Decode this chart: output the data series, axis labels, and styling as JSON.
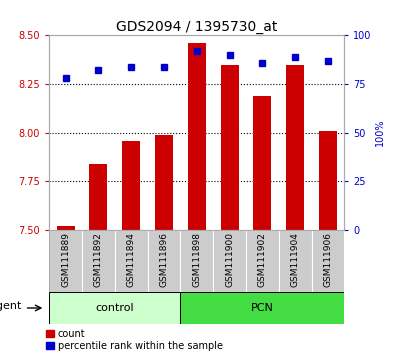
{
  "title": "GDS2094 / 1395730_at",
  "categories": [
    "GSM111889",
    "GSM111892",
    "GSM111894",
    "GSM111896",
    "GSM111898",
    "GSM111900",
    "GSM111902",
    "GSM111904",
    "GSM111906"
  ],
  "bar_values": [
    7.52,
    7.84,
    7.96,
    7.99,
    8.46,
    8.35,
    8.19,
    8.35,
    8.01
  ],
  "bar_bottom": 7.5,
  "blue_values": [
    78,
    82,
    84,
    84,
    92,
    90,
    86,
    89,
    87
  ],
  "ylim_left": [
    7.5,
    8.5
  ],
  "ylim_right": [
    0,
    100
  ],
  "yticks_left": [
    7.5,
    7.75,
    8.0,
    8.25,
    8.5
  ],
  "yticks_right": [
    0,
    25,
    50,
    75,
    100
  ],
  "bar_color": "#cc0000",
  "blue_color": "#0000cc",
  "control_label": "control",
  "pcn_label": "PCN",
  "agent_label": "agent",
  "legend_count": "count",
  "legend_percentile": "percentile rank within the sample",
  "control_bg": "#ccffcc",
  "pcn_bg": "#44dd44",
  "sample_bg": "#cccccc",
  "title_fontsize": 10,
  "tick_fontsize": 7,
  "label_fontsize": 8
}
